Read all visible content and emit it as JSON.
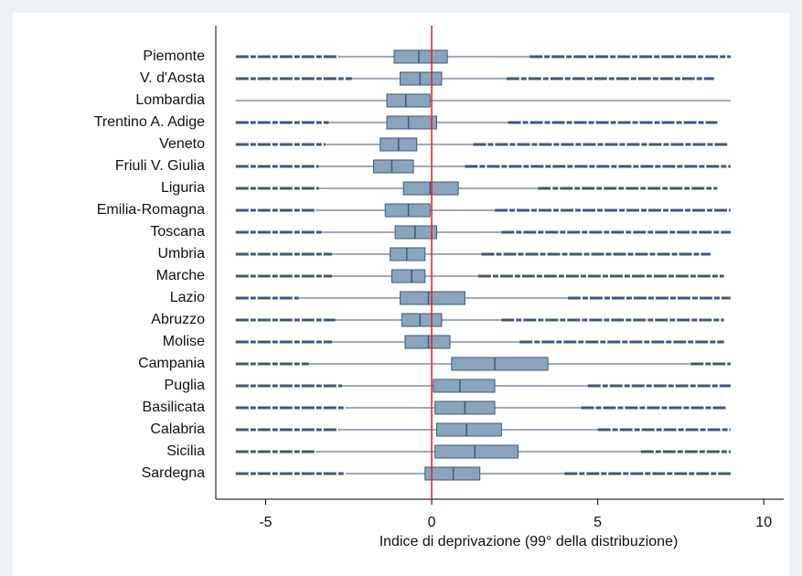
{
  "chart_data": {
    "type": "box",
    "x_label": "Indice di deprivazione (99° della distribuzione)",
    "categories": [
      "Piemonte",
      "V. d'Aosta",
      "Lombardia",
      "Trentino A. Adige",
      "Veneto",
      "Friuli V. Giulia",
      "Liguria",
      "Emilia-Romagna",
      "Toscana",
      "Umbria",
      "Marche",
      "Lazio",
      "Abruzzo",
      "Molise",
      "Campania",
      "Puglia",
      "Basilicata",
      "Calabria",
      "Sicilia",
      "Sardegna"
    ],
    "min": [
      -5.9,
      -5.9,
      -5.9,
      -5.9,
      -5.9,
      -5.9,
      -5.9,
      -5.9,
      -5.9,
      -5.9,
      -5.9,
      -5.9,
      -5.9,
      -5.9,
      -5.9,
      -5.9,
      -5.9,
      -5.9,
      -5.9,
      -5.9
    ],
    "whisker_low": [
      -2.8,
      -2.4,
      -5.9,
      -3.1,
      -3.2,
      -3.4,
      -3.4,
      -3.5,
      -3.3,
      -3.0,
      -3.0,
      -4.0,
      -2.9,
      -3.0,
      -3.7,
      -2.7,
      -2.6,
      -2.8,
      -3.5,
      -2.6
    ],
    "q1": [
      -1.13,
      -0.95,
      -1.35,
      -1.35,
      -1.55,
      -1.75,
      -0.85,
      -1.4,
      -1.1,
      -1.25,
      -1.2,
      -0.95,
      -0.9,
      -0.8,
      0.6,
      0.05,
      0.1,
      0.15,
      0.1,
      -0.2
    ],
    "median": [
      -0.39,
      -0.35,
      -0.78,
      -0.7,
      -1.0,
      -1.2,
      -0.05,
      -0.7,
      -0.5,
      -0.75,
      -0.6,
      -0.1,
      -0.35,
      -0.1,
      1.9,
      0.85,
      1.0,
      1.05,
      1.3,
      0.65
    ],
    "q3": [
      0.47,
      0.3,
      -0.05,
      0.15,
      -0.45,
      -0.55,
      0.8,
      -0.05,
      0.15,
      -0.2,
      -0.2,
      1.0,
      0.3,
      0.55,
      3.5,
      1.9,
      1.9,
      2.1,
      2.6,
      1.45
    ],
    "whisker_high": [
      2.95,
      2.25,
      9.0,
      2.3,
      1.25,
      1.0,
      3.2,
      1.9,
      2.1,
      1.5,
      1.4,
      4.1,
      2.1,
      2.65,
      7.8,
      4.7,
      4.5,
      5.0,
      6.3,
      4.0
    ],
    "max": [
      9.0,
      8.5,
      9.0,
      8.6,
      8.9,
      9.0,
      8.6,
      9.0,
      9.0,
      8.4,
      8.8,
      9.0,
      8.8,
      8.8,
      9.0,
      9.0,
      8.9,
      9.0,
      9.0,
      9.0
    ],
    "box_color": "#8aa4bd",
    "line_color": "#3c5a78",
    "ref_line": 0,
    "ref_color": "#e0201b",
    "xlim": [
      -6.5,
      10.6
    ],
    "xticks": [
      -5,
      0,
      5,
      10
    ]
  }
}
